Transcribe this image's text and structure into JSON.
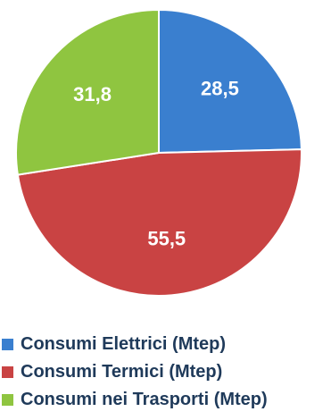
{
  "chart_data": {
    "type": "pie",
    "title": "",
    "slices": [
      {
        "label": "Consumi Elettrici (Mtep)",
        "value": 28.5,
        "display": "28,5",
        "color": "#3a7fcf"
      },
      {
        "label": "Consumi Termici (Mtep)",
        "value": 55.5,
        "display": "55,5",
        "color": "#c94343"
      },
      {
        "label": "Consumi nei Trasporti (Mtep)",
        "value": 31.8,
        "display": "31,8",
        "color": "#8fc540"
      }
    ],
    "start_angle_deg": 0,
    "direction": "clockwise",
    "legend_position": "bottom"
  }
}
